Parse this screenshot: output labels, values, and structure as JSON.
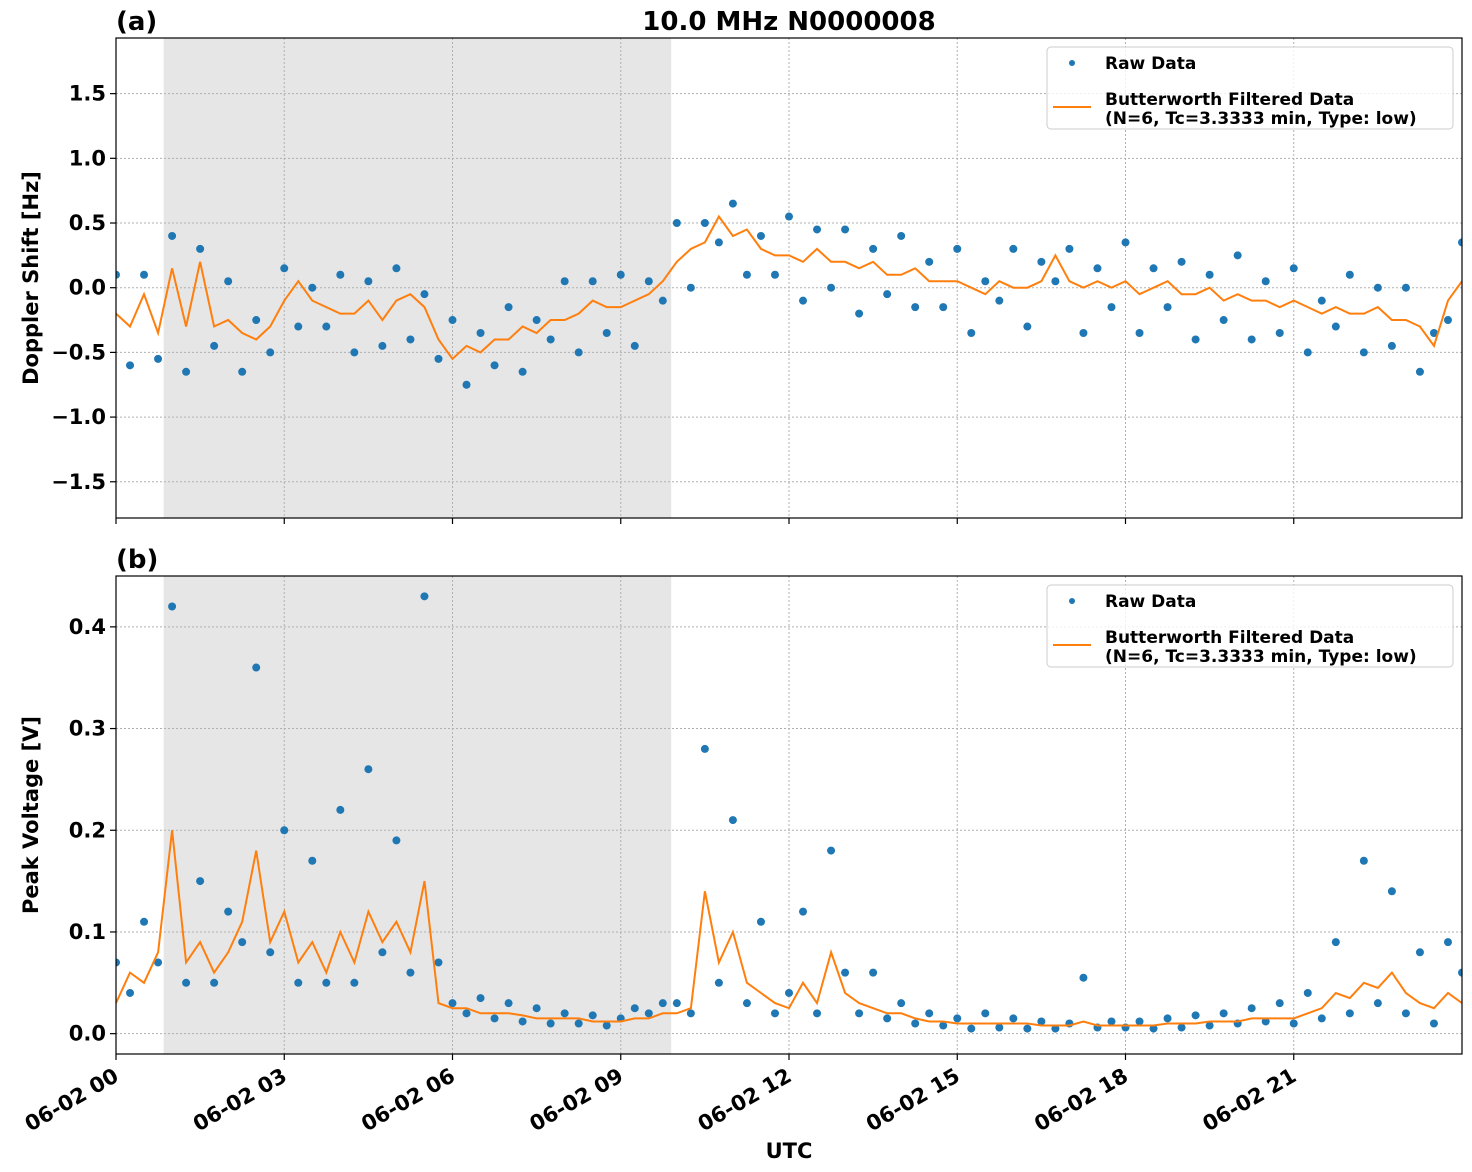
{
  "chart_data": [
    {
      "type": "scatter",
      "title": "10.0 MHz N0000008",
      "panel_label": "(a)",
      "y_label": "Doppler Shift [Hz]",
      "xlim": [
        0,
        24
      ],
      "xticks": [
        0,
        3,
        6,
        9,
        12,
        15,
        18,
        21
      ],
      "ylim": [
        -1.78,
        1.93
      ],
      "yticks": [
        {
          "value": -1.5,
          "label": "−1.5"
        },
        {
          "value": -1.0,
          "label": "−1.0"
        },
        {
          "value": -0.5,
          "label": "−0.5"
        },
        {
          "value": 0,
          "label": "0.0"
        },
        0.5,
        {
          "value": 1.0,
          "label": "1.0"
        },
        1.5
      ],
      "grid": true,
      "legend": "upper right",
      "shaded_span": [
        0.85,
        9.9
      ],
      "shade_color": "#e6e6e6",
      "x": [
        0,
        0.25,
        0.5,
        0.75,
        1,
        1.25,
        1.5,
        1.75,
        2,
        2.25,
        2.5,
        2.75,
        3,
        3.25,
        3.5,
        3.75,
        4,
        4.25,
        4.5,
        4.75,
        5,
        5.25,
        5.5,
        5.75,
        6,
        6.25,
        6.5,
        6.75,
        7,
        7.25,
        7.5,
        7.75,
        8,
        8.25,
        8.5,
        8.75,
        9,
        9.25,
        9.5,
        9.75,
        10,
        10.25,
        10.5,
        10.75,
        11,
        11.25,
        11.5,
        11.75,
        12,
        12.25,
        12.5,
        12.75,
        13,
        13.25,
        13.5,
        13.75,
        14,
        14.25,
        14.5,
        14.75,
        15,
        15.25,
        15.5,
        15.75,
        16,
        16.25,
        16.5,
        16.75,
        17,
        17.25,
        17.5,
        17.75,
        18,
        18.25,
        18.5,
        18.75,
        19,
        19.25,
        19.5,
        19.75,
        20,
        20.25,
        20.5,
        20.75,
        21,
        21.25,
        21.5,
        21.75,
        22,
        22.25,
        22.5,
        22.75,
        23,
        23.25,
        23.5,
        23.75,
        24
      ],
      "series": [
        {
          "name": "Raw Data",
          "type": "scatter",
          "color": "#1f77b4",
          "values": [
            0.1,
            -0.6,
            0.1,
            -0.55,
            0.4,
            -0.65,
            0.3,
            -0.45,
            0.05,
            -0.65,
            -0.25,
            -0.5,
            0.15,
            -0.3,
            0.0,
            -0.3,
            0.1,
            -0.5,
            0.05,
            -0.45,
            0.15,
            -0.4,
            -0.05,
            -0.55,
            -0.25,
            -0.75,
            -0.35,
            -0.6,
            -0.15,
            -0.65,
            -0.25,
            -0.4,
            0.05,
            -0.5,
            0.05,
            -0.35,
            0.1,
            -0.45,
            0.05,
            -0.1,
            0.5,
            0.0,
            0.5,
            0.35,
            0.65,
            0.1,
            0.4,
            0.1,
            0.55,
            -0.1,
            0.45,
            0.0,
            0.45,
            -0.2,
            0.3,
            -0.05,
            0.4,
            -0.15,
            0.2,
            -0.15,
            0.3,
            -0.35,
            0.05,
            -0.1,
            0.3,
            -0.3,
            0.2,
            0.05,
            0.3,
            -0.35,
            0.15,
            -0.15,
            0.35,
            -0.35,
            0.15,
            -0.15,
            0.2,
            -0.4,
            0.1,
            -0.25,
            0.25,
            -0.4,
            0.05,
            -0.35,
            0.15,
            -0.5,
            -0.1,
            -0.3,
            0.1,
            -0.5,
            0.0,
            -0.45,
            0.0,
            -0.65,
            -0.35,
            -0.25,
            0.35
          ]
        },
        {
          "name": "Butterworth Filtered Data\n(N=6, Tc=3.3333 min, Type: low)",
          "type": "line",
          "color": "#ff7f0e",
          "values": [
            -0.2,
            -0.3,
            -0.05,
            -0.35,
            0.15,
            -0.3,
            0.2,
            -0.3,
            -0.25,
            -0.35,
            -0.4,
            -0.3,
            -0.1,
            0.05,
            -0.1,
            -0.15,
            -0.2,
            -0.2,
            -0.1,
            -0.25,
            -0.1,
            -0.05,
            -0.15,
            -0.4,
            -0.55,
            -0.45,
            -0.5,
            -0.4,
            -0.4,
            -0.3,
            -0.35,
            -0.25,
            -0.25,
            -0.2,
            -0.1,
            -0.15,
            -0.15,
            -0.1,
            -0.05,
            0.05,
            0.2,
            0.3,
            0.35,
            0.55,
            0.4,
            0.45,
            0.3,
            0.25,
            0.25,
            0.2,
            0.3,
            0.2,
            0.2,
            0.15,
            0.2,
            0.1,
            0.1,
            0.15,
            0.05,
            0.05,
            0.05,
            0.0,
            -0.05,
            0.05,
            0.0,
            0.0,
            0.05,
            0.25,
            0.05,
            0.0,
            0.05,
            0.0,
            0.05,
            -0.05,
            0.0,
            0.05,
            -0.05,
            -0.05,
            0.0,
            -0.1,
            -0.05,
            -0.1,
            -0.1,
            -0.15,
            -0.1,
            -0.15,
            -0.2,
            -0.15,
            -0.2,
            -0.2,
            -0.15,
            -0.25,
            -0.25,
            -0.3,
            -0.45,
            -0.1,
            0.05
          ]
        }
      ]
    },
    {
      "type": "scatter",
      "panel_label": "(b)",
      "y_label": "Peak Voltage [V]",
      "x_label": "UTC",
      "xlim": [
        0,
        24
      ],
      "xticks": [
        {
          "value": 0,
          "label": "06-02 00"
        },
        {
          "value": 3,
          "label": "06-02 03"
        },
        {
          "value": 6,
          "label": "06-02 06"
        },
        {
          "value": 9,
          "label": "06-02 09"
        },
        {
          "value": 12,
          "label": "06-02 12"
        },
        {
          "value": 15,
          "label": "06-02 15"
        },
        {
          "value": 18,
          "label": "06-02 18"
        },
        {
          "value": 21,
          "label": "06-02 21"
        }
      ],
      "ylim": [
        -0.02,
        0.45
      ],
      "yticks": [
        {
          "value": 0,
          "label": "0.0"
        },
        0.1,
        0.2,
        0.3,
        0.4
      ],
      "grid": true,
      "legend": "upper right",
      "shaded_span": [
        0.85,
        9.9
      ],
      "shade_color": "#e6e6e6",
      "x": [
        0,
        0.25,
        0.5,
        0.75,
        1,
        1.25,
        1.5,
        1.75,
        2,
        2.25,
        2.5,
        2.75,
        3,
        3.25,
        3.5,
        3.75,
        4,
        4.25,
        4.5,
        4.75,
        5,
        5.25,
        5.5,
        5.75,
        6,
        6.25,
        6.5,
        6.75,
        7,
        7.25,
        7.5,
        7.75,
        8,
        8.25,
        8.5,
        8.75,
        9,
        9.25,
        9.5,
        9.75,
        10,
        10.25,
        10.5,
        10.75,
        11,
        11.25,
        11.5,
        11.75,
        12,
        12.25,
        12.5,
        12.75,
        13,
        13.25,
        13.5,
        13.75,
        14,
        14.25,
        14.5,
        14.75,
        15,
        15.25,
        15.5,
        15.75,
        16,
        16.25,
        16.5,
        16.75,
        17,
        17.25,
        17.5,
        17.75,
        18,
        18.25,
        18.5,
        18.75,
        19,
        19.25,
        19.5,
        19.75,
        20,
        20.25,
        20.5,
        20.75,
        21,
        21.25,
        21.5,
        21.75,
        22,
        22.25,
        22.5,
        22.75,
        23,
        23.25,
        23.5,
        23.75,
        24
      ],
      "series": [
        {
          "name": "Raw Data",
          "type": "scatter",
          "color": "#1f77b4",
          "values": [
            0.07,
            0.04,
            0.11,
            0.07,
            0.42,
            0.05,
            0.15,
            0.05,
            0.12,
            0.09,
            0.36,
            0.08,
            0.2,
            0.05,
            0.17,
            0.05,
            0.22,
            0.05,
            0.26,
            0.08,
            0.19,
            0.06,
            0.43,
            0.07,
            0.03,
            0.02,
            0.035,
            0.015,
            0.03,
            0.012,
            0.025,
            0.01,
            0.02,
            0.01,
            0.018,
            0.008,
            0.015,
            0.025,
            0.02,
            0.03,
            0.03,
            0.02,
            0.28,
            0.05,
            0.21,
            0.03,
            0.11,
            0.02,
            0.04,
            0.12,
            0.02,
            0.18,
            0.06,
            0.02,
            0.06,
            0.015,
            0.03,
            0.01,
            0.02,
            0.008,
            0.015,
            0.005,
            0.02,
            0.006,
            0.015,
            0.005,
            0.012,
            0.005,
            0.01,
            0.055,
            0.006,
            0.012,
            0.006,
            0.012,
            0.005,
            0.015,
            0.006,
            0.018,
            0.008,
            0.02,
            0.01,
            0.025,
            0.012,
            0.03,
            0.01,
            0.04,
            0.015,
            0.09,
            0.02,
            0.17,
            0.03,
            0.14,
            0.02,
            0.08,
            0.01,
            0.09,
            0.06
          ]
        },
        {
          "name": "Butterworth Filtered Data\n(N=6, Tc=3.3333 min, Type: low)",
          "type": "line",
          "color": "#ff7f0e",
          "values": [
            0.03,
            0.06,
            0.05,
            0.08,
            0.2,
            0.07,
            0.09,
            0.06,
            0.08,
            0.11,
            0.18,
            0.09,
            0.12,
            0.07,
            0.09,
            0.06,
            0.1,
            0.07,
            0.12,
            0.09,
            0.11,
            0.08,
            0.15,
            0.03,
            0.025,
            0.025,
            0.02,
            0.02,
            0.02,
            0.018,
            0.015,
            0.015,
            0.015,
            0.015,
            0.012,
            0.012,
            0.012,
            0.015,
            0.015,
            0.02,
            0.02,
            0.025,
            0.14,
            0.07,
            0.1,
            0.05,
            0.04,
            0.03,
            0.025,
            0.05,
            0.03,
            0.08,
            0.04,
            0.03,
            0.025,
            0.02,
            0.02,
            0.015,
            0.012,
            0.012,
            0.01,
            0.01,
            0.01,
            0.01,
            0.01,
            0.01,
            0.008,
            0.008,
            0.008,
            0.012,
            0.008,
            0.008,
            0.008,
            0.008,
            0.008,
            0.01,
            0.01,
            0.01,
            0.012,
            0.012,
            0.012,
            0.015,
            0.015,
            0.015,
            0.015,
            0.02,
            0.025,
            0.04,
            0.035,
            0.05,
            0.045,
            0.06,
            0.04,
            0.03,
            0.025,
            0.04,
            0.03
          ]
        }
      ]
    }
  ]
}
